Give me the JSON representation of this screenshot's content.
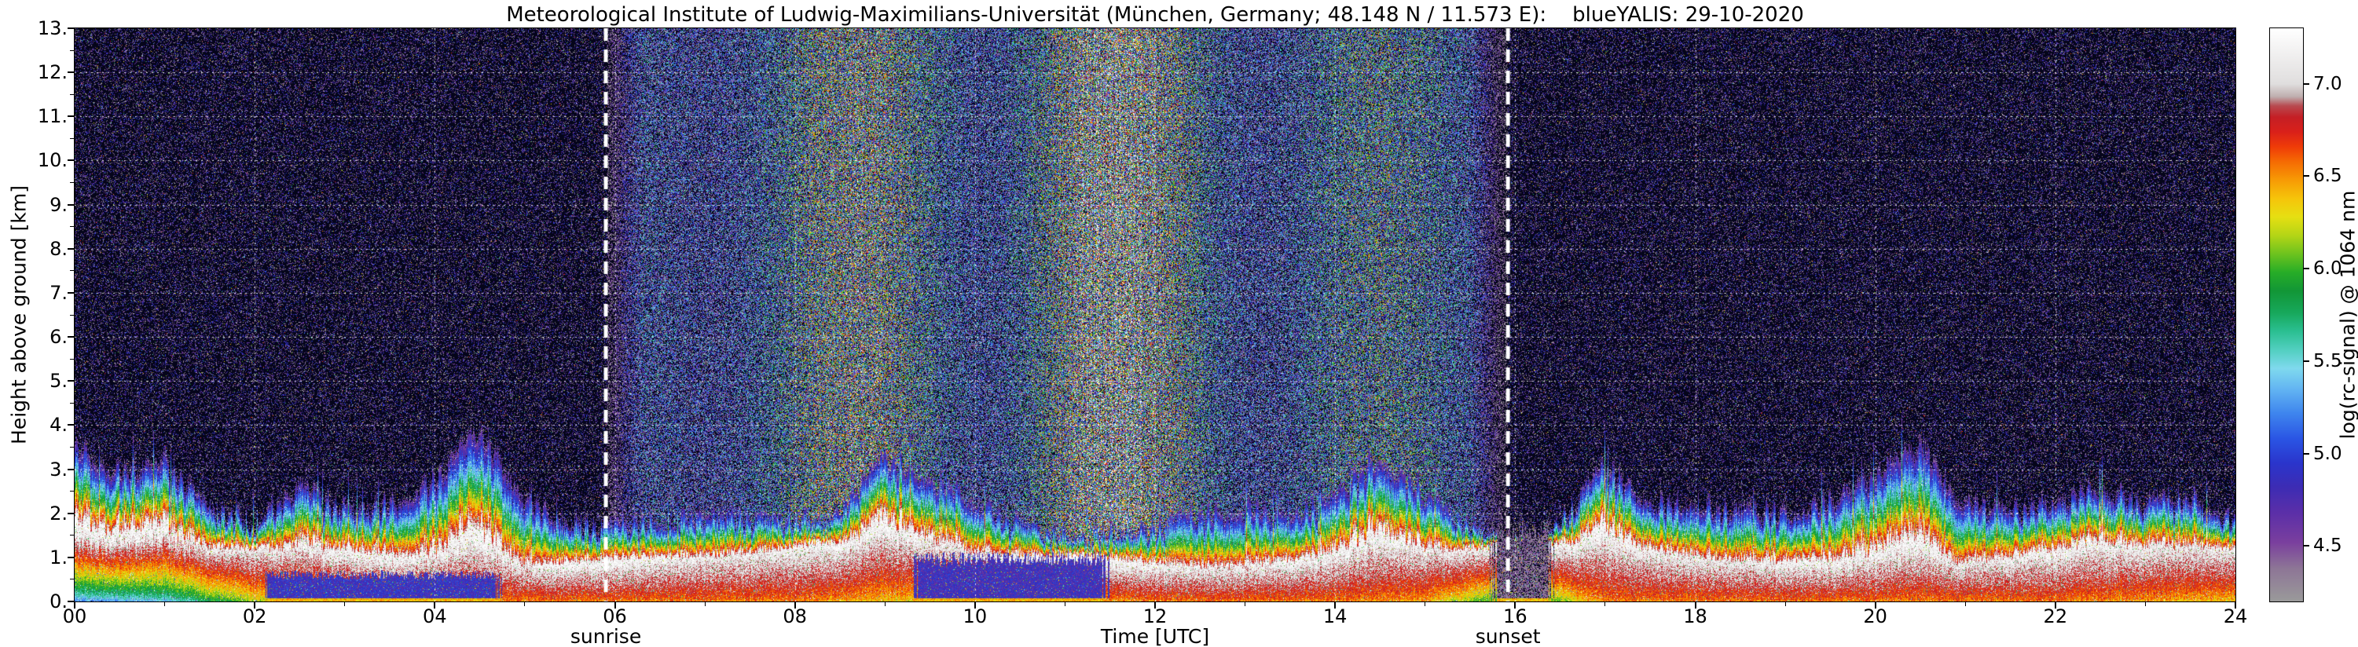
{
  "chart_data": {
    "type": "heatmap",
    "title": "Meteorological Institute of Ludwig-Maximilians-Universität (München, Germany; 48.148 N / 11.573 E):    blueYALIS: 29-10-2020",
    "xlabel": "Time [UTC]",
    "ylabel": "Height above ground [km]",
    "colorbar_label": "log(rc-signal) @ 1064 nm",
    "xlim": [
      0,
      24
    ],
    "ylim": [
      0,
      13
    ],
    "grid": true,
    "x_ticks": [
      "00",
      "02",
      "04",
      "06",
      "08",
      "10",
      "12",
      "14",
      "16",
      "18",
      "20",
      "22",
      "24"
    ],
    "x_tick_values": [
      0,
      2,
      4,
      6,
      8,
      10,
      12,
      14,
      16,
      18,
      20,
      22,
      24
    ],
    "y_ticks": [
      "0.",
      "1.",
      "2.",
      "3.",
      "4.",
      "5.",
      "6.",
      "7.",
      "8.",
      "9.",
      "10.",
      "11.",
      "12.",
      "13."
    ],
    "y_tick_values": [
      0,
      1,
      2,
      3,
      4,
      5,
      6,
      7,
      8,
      9,
      10,
      11,
      12,
      13
    ],
    "colorbar_ticks": [
      4.5,
      5.0,
      5.5,
      6.0,
      6.5,
      7.0
    ],
    "colorbar_range": [
      4.2,
      7.3
    ],
    "under_color": "#05051a",
    "annotations": [
      {
        "label": "sunrise",
        "x": 5.9
      },
      {
        "label": "sunset",
        "x": 15.92
      }
    ],
    "colormap": [
      [
        4.2,
        "#9a9a9a"
      ],
      [
        4.38,
        "#8d7596"
      ],
      [
        4.52,
        "#7a3f9e"
      ],
      [
        4.68,
        "#5b2fa8"
      ],
      [
        4.82,
        "#3c2cb4"
      ],
      [
        4.95,
        "#2a35cc"
      ],
      [
        5.08,
        "#2a55e4"
      ],
      [
        5.22,
        "#3f86ee"
      ],
      [
        5.35,
        "#63b5f2"
      ],
      [
        5.46,
        "#7fd9ee"
      ],
      [
        5.56,
        "#52cfc0"
      ],
      [
        5.66,
        "#2bbf92"
      ],
      [
        5.76,
        "#17a85c"
      ],
      [
        5.88,
        "#129636"
      ],
      [
        5.98,
        "#27ad27"
      ],
      [
        6.08,
        "#6ec31e"
      ],
      [
        6.18,
        "#b4d516"
      ],
      [
        6.28,
        "#e6df12"
      ],
      [
        6.38,
        "#f6c40a"
      ],
      [
        6.48,
        "#f79a05"
      ],
      [
        6.58,
        "#f56a03"
      ],
      [
        6.66,
        "#ef3b08"
      ],
      [
        6.74,
        "#d9201a"
      ],
      [
        6.82,
        "#c41f25"
      ],
      [
        6.88,
        "#b84a50"
      ],
      [
        6.93,
        "#beaeae"
      ],
      [
        7.0,
        "#e0dede"
      ],
      [
        7.3,
        "#ffffff"
      ]
    ],
    "layer_top_step_h": 0.5,
    "layer_top_km": [
      3.6,
      3.0,
      3.2,
      2.1,
      1.9,
      2.6,
      2.1,
      2.3,
      2.8,
      3.9,
      2.4,
      1.8,
      1.7,
      1.9,
      2.0,
      1.9,
      1.9,
      2.1,
      3.3,
      2.8,
      2.4,
      1.7,
      1.5,
      1.6,
      1.7,
      2.0,
      2.2,
      1.9,
      2.4,
      3.4,
      2.4,
      1.7,
      1.3,
      1.8,
      3.1,
      2.3,
      2.2,
      2.0,
      2.1,
      2.3,
      2.9,
      3.6,
      2.3,
      2.0,
      2.3,
      2.7,
      2.2,
      2.4,
      1.9
    ],
    "ground_value_step_h": 1,
    "ground_value": [
      5.1,
      5.3,
      6.1,
      6.3,
      6.4,
      6.5,
      6.5,
      6.5,
      6.5,
      6.3,
      6.2,
      6.3,
      6.5,
      6.5,
      6.5,
      6.4,
      5.6,
      6.5,
      6.5,
      6.5,
      6.5,
      6.5,
      6.5,
      6.4,
      6.3
    ],
    "gaps": [
      {
        "t0": 2.1,
        "t1": 4.7,
        "h_max": 0.6,
        "value": 4.85
      },
      {
        "t0": 9.35,
        "t1": 11.45,
        "h_max": 0.95,
        "value": 4.8
      },
      {
        "t0": 15.75,
        "t1": 16.4,
        "h_max": 1.6,
        "value": 4.3
      }
    ]
  }
}
